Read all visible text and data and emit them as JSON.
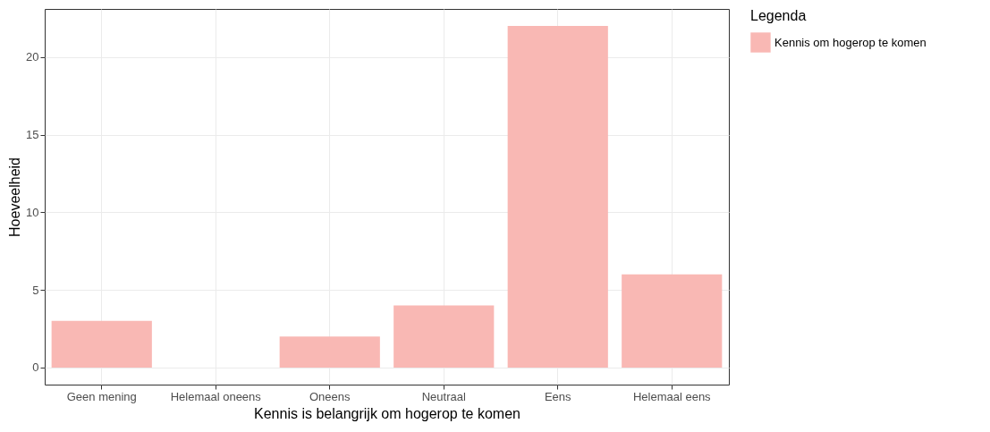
{
  "chart_data": {
    "type": "bar",
    "xlabel": "Kennis is belangrijk om hogerop te komen",
    "ylabel": "Hoeveelheid",
    "legend_title": "Legenda",
    "categories": [
      "Geen mening",
      "Helemaal oneens",
      "Oneens",
      "Neutraal",
      "Eens",
      "Helemaal eens"
    ],
    "series": [
      {
        "name": "Kennis om hogerop te komen",
        "color": "#f9b8b4",
        "values": [
          3,
          0,
          2,
          4,
          22,
          6
        ]
      }
    ],
    "ylim": [
      -1.1,
      23.1
    ],
    "yticks": [
      0,
      5,
      10,
      15,
      20
    ],
    "grid": true,
    "legend": "right"
  }
}
